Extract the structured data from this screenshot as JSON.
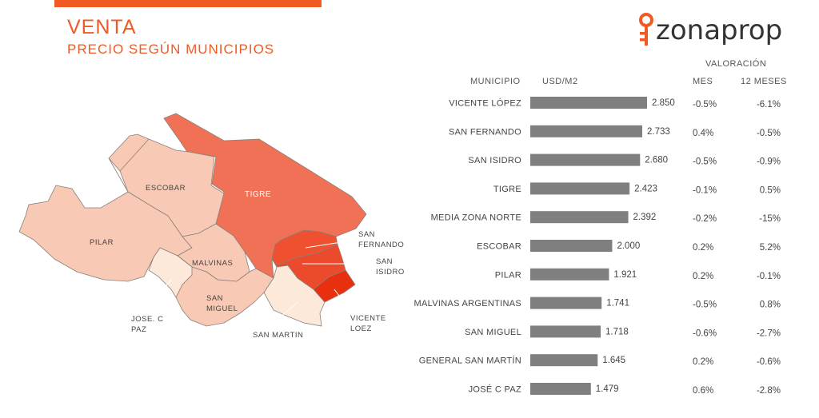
{
  "header": {
    "title": "VENTA",
    "subtitle": "PRECIO SEGÚN MUNICIPIOS",
    "logo_text": "zonaprop"
  },
  "table_headers": {
    "municipio": "MUNICIPIO",
    "usd": "USD/M2",
    "valoracion": "VALORACIÓN",
    "mes": "MES",
    "doce_meses": "12 MESES"
  },
  "map": {
    "labels": {
      "tigre": "TIGRE",
      "escobar": "ESCOBAR",
      "pilar": "PILAR",
      "malvinas": "MALVINAS",
      "san_miguel_1": "SAN",
      "san_miguel_2": "MIGUEL",
      "jose_1": "JOSE. C",
      "jose_2": "PAZ",
      "san_martin": "SAN MARTIN",
      "san_fernando_1": "SAN",
      "san_fernando_2": "FERNANDO",
      "san_isidro_1": "SAN",
      "san_isidro_2": "ISIDRO",
      "vicente_1": "VICENTE",
      "vicente_2": "LOEZ"
    },
    "colors": {
      "tigre": "#f07155",
      "light": "#f8c9b4",
      "lightest": "#fde9d9",
      "san_fernando": "#ee5030",
      "san_isidro": "#ec4a2c",
      "vicente": "#e8300e"
    }
  },
  "chart_data": {
    "type": "bar",
    "orientation": "horizontal",
    "categories": [
      "VICENTE LÓPEZ",
      "SAN FERNANDO",
      "SAN ISIDRO",
      "TIGRE",
      "MEDIA ZONA NORTE",
      "ESCOBAR",
      "PILAR",
      "MALVINAS ARGENTINAS",
      "SAN MIGUEL",
      "GENERAL SAN MARTÍN",
      "JOSÉ C PAZ"
    ],
    "values": [
      2850,
      2733,
      2680,
      2423,
      2392,
      2000,
      1921,
      1741,
      1718,
      1645,
      1479
    ],
    "value_labels": [
      "2.850",
      "2.733",
      "2.680",
      "2.423",
      "2.392",
      "2.000",
      "1.921",
      "1.741",
      "1.718",
      "1.645",
      "1.479"
    ],
    "mes": [
      "-0.5%",
      "0.4%",
      "-0.5%",
      "-0.1%",
      "-0.2%",
      "0.2%",
      "0.2%",
      "-0.5%",
      "-0.6%",
      "0.2%",
      "0.6%"
    ],
    "doce_meses": [
      "-6.1%",
      "-0.5%",
      "-0.9%",
      "0.5%",
      "-15%",
      "5.2%",
      "-0.1%",
      "0.8%",
      "-2.7%",
      "-0.6%",
      "-2.8%"
    ],
    "bar_color": "#7f7f7f",
    "xlim": [
      0,
      2850
    ]
  }
}
